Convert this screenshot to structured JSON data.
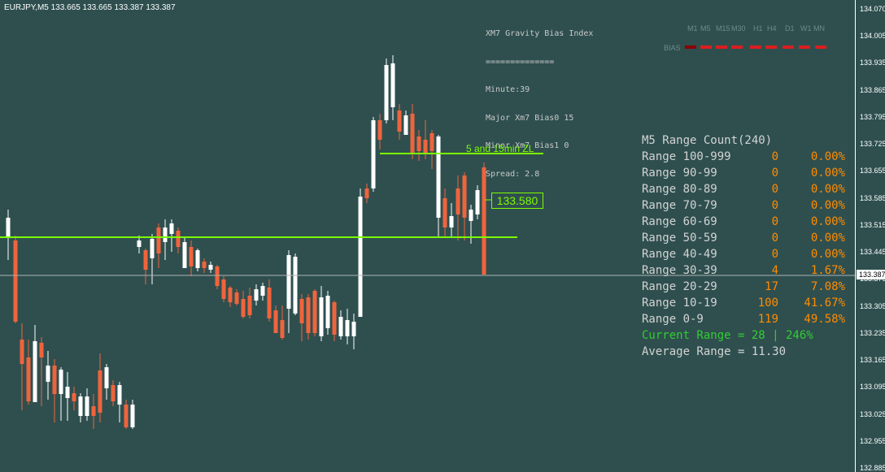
{
  "symbol_header": "EURJPY,M5  133.665 133.665 133.387 133.387",
  "gravity_panel": {
    "title": "XM7 Gravity Bias Index",
    "separator": "==============",
    "minute": "Minute:39",
    "major": "Major Xm7 Bias0 15",
    "minor": "Minor Xm7 Bias1 0",
    "spread": "Spread: 2.8"
  },
  "tf_panel": {
    "labels": [
      "M1",
      "M5",
      "M15",
      "M30",
      "H1",
      "H4",
      "D1",
      "W1",
      "MN"
    ],
    "bias_label": "BIAS",
    "bias_color": "#dc1e1e"
  },
  "range_panel": {
    "title": "M5 Range Count(240)",
    "rows": [
      {
        "label": "Range 100-999",
        "count": "0",
        "pct": "0.00%"
      },
      {
        "label": "Range 90-99",
        "count": "0",
        "pct": "0.00%"
      },
      {
        "label": "Range 80-89",
        "count": "0",
        "pct": "0.00%"
      },
      {
        "label": "Range 70-79",
        "count": "0",
        "pct": "0.00%"
      },
      {
        "label": "Range 60-69",
        "count": "0",
        "pct": "0.00%"
      },
      {
        "label": "Range 50-59",
        "count": "0",
        "pct": "0.00%"
      },
      {
        "label": "Range 40-49",
        "count": "0",
        "pct": "0.00%"
      },
      {
        "label": "Range 30-39",
        "count": "4",
        "pct": "1.67%"
      },
      {
        "label": "Range 20-29",
        "count": "17",
        "pct": "7.08%"
      },
      {
        "label": "Range 10-19",
        "count": "100",
        "pct": "41.67%"
      },
      {
        "label": "Range 0-9",
        "count": "119",
        "pct": "49.58%"
      }
    ],
    "current": "Current Range = 28 | 246%",
    "average": "Average Range = 11.30",
    "current_color": "#32cd32",
    "value_color": "#ff8c00"
  },
  "zl_label": "5 and 15min ZL",
  "price_tag": "133.580",
  "price_axis": {
    "labels": [
      "134.070",
      "134.005",
      "133.935",
      "133.865",
      "133.795",
      "133.725",
      "133.655",
      "133.585",
      "133.515",
      "133.445",
      "133.375",
      "133.305",
      "133.235",
      "133.165",
      "133.095",
      "133.025",
      "132.955",
      "132.885"
    ],
    "current_price": "133.387"
  },
  "colors": {
    "background": "#2f4f4f",
    "bull": "#ffffff",
    "bear": "#f0643c",
    "level_line": "#7cfc00"
  }
}
